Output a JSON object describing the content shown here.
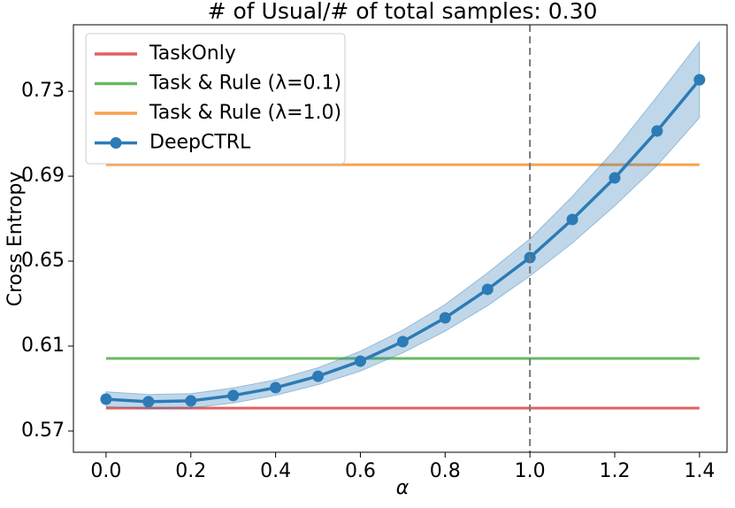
{
  "chart_data": {
    "type": "line",
    "title": "# of Usual/# of total samples: 0.30",
    "xlabel": "α",
    "ylabel": "Cross Entropy",
    "x": [
      0.0,
      0.1,
      0.2,
      0.3,
      0.4,
      0.5,
      0.6,
      0.7,
      0.8,
      0.9,
      1.0,
      1.1,
      1.2,
      1.3,
      1.4
    ],
    "xlim": [
      -0.077,
      1.465
    ],
    "ylim": [
      0.56,
      0.7613
    ],
    "xticks": [
      {
        "value": 0,
        "label": "0.0"
      },
      0.2,
      0.4,
      0.6,
      0.8,
      {
        "value": 1,
        "label": "1.0"
      },
      1.2,
      1.4
    ],
    "yticks": [
      0.57,
      0.61,
      0.65,
      0.69,
      0.73
    ],
    "vline": 1.0,
    "legend": "upper left",
    "series": [
      {
        "name": "TaskOnly",
        "color": "#e06262",
        "hline": 0.5808
      },
      {
        "name": "Task & Rule (λ=0.1)",
        "color": "#6bb862",
        "hline": 0.6042
      },
      {
        "name": "Task & Rule (λ=1.0)",
        "color": "#f7a24c",
        "hline": 0.6954
      },
      {
        "name": "DeepCTRL",
        "color": "#2c7bb6",
        "values": [
          0.585,
          0.5838,
          0.5842,
          0.5867,
          0.5904,
          0.5958,
          0.6029,
          0.6121,
          0.6233,
          0.6367,
          0.6517,
          0.6696,
          0.6892,
          0.7113,
          0.7354
        ],
        "lower": [
          0.5815,
          0.5805,
          0.5808,
          0.5832,
          0.5868,
          0.5918,
          0.5982,
          0.6068,
          0.617,
          0.629,
          0.643,
          0.6585,
          0.676,
          0.695,
          0.7175
        ],
        "upper": [
          0.5885,
          0.5872,
          0.5876,
          0.5903,
          0.5941,
          0.5998,
          0.6076,
          0.6175,
          0.6296,
          0.6445,
          0.6605,
          0.6805,
          0.7025,
          0.7275,
          0.7533
        ]
      }
    ]
  }
}
